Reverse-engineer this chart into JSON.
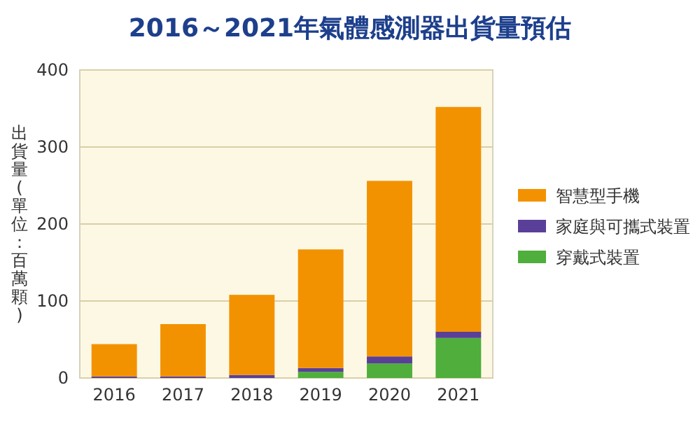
{
  "chart_data": {
    "type": "bar",
    "title": "2016～2021年氣體感測器出貨量預估",
    "ylabel": "出貨量(單位：百萬顆)",
    "categories": [
      "2016",
      "2017",
      "2018",
      "2019",
      "2020",
      "2021"
    ],
    "stacked": true,
    "ylim": [
      0,
      400
    ],
    "yticks": [
      0,
      100,
      200,
      300,
      400
    ],
    "grid": "y",
    "legend": "right",
    "series": [
      {
        "name": "穿戴式裝置",
        "color": "#4fae3c",
        "values": [
          0,
          0,
          0,
          8,
          19,
          52
        ]
      },
      {
        "name": "家庭與可攜式裝置",
        "color": "#5a3f99",
        "values": [
          2,
          2,
          4,
          5,
          9,
          8
        ]
      },
      {
        "name": "智慧型手機",
        "color": "#f39200",
        "values": [
          42,
          68,
          104,
          154,
          228,
          292
        ]
      }
    ]
  }
}
